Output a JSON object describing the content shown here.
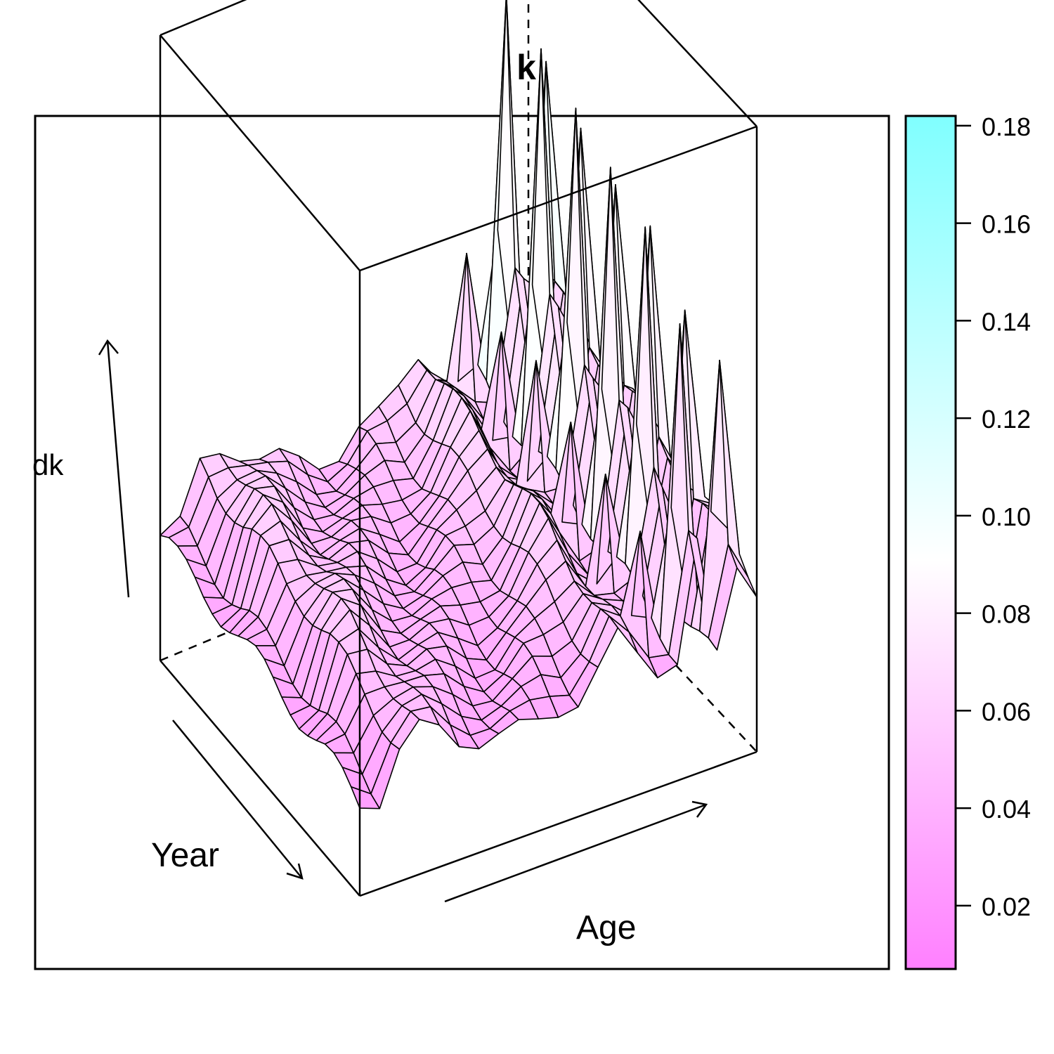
{
  "chart_data": {
    "type": "surface-3d",
    "title": "k",
    "xlabel": "Age",
    "ylabel": "Year",
    "zlabel": "dk",
    "colorkey": {
      "ticks": [
        "0.02",
        "0.04",
        "0.06",
        "0.08",
        "0.10",
        "0.12",
        "0.14",
        "0.16",
        "0.18"
      ],
      "range": [
        0.007,
        0.182
      ],
      "low_color": "#ff80ff",
      "mid_color": "#ffffff",
      "high_color": "#80ffff"
    },
    "zlim": [
      0,
      0.2
    ],
    "n_age": 21,
    "n_year": 24,
    "age_profile": [
      0.04,
      0.04,
      0.058,
      0.062,
      0.058,
      0.052,
      0.05,
      0.048,
      0.046,
      0.046,
      0.05,
      0.052,
      0.06,
      0.07,
      0.06,
      0.095,
      0.06,
      0.18,
      0.05,
      0.15,
      0.08
    ],
    "year_profile": [
      1.0,
      1.0,
      0.98,
      0.97,
      0.96,
      0.95,
      0.95,
      0.94,
      0.94,
      0.93,
      0.92,
      0.92,
      0.91,
      0.9,
      0.89,
      0.88,
      0.86,
      0.85,
      0.83,
      0.82,
      0.8,
      0.78,
      0.76,
      0.74
    ],
    "spike_years": [
      1,
      5,
      9,
      13,
      17,
      21
    ]
  }
}
